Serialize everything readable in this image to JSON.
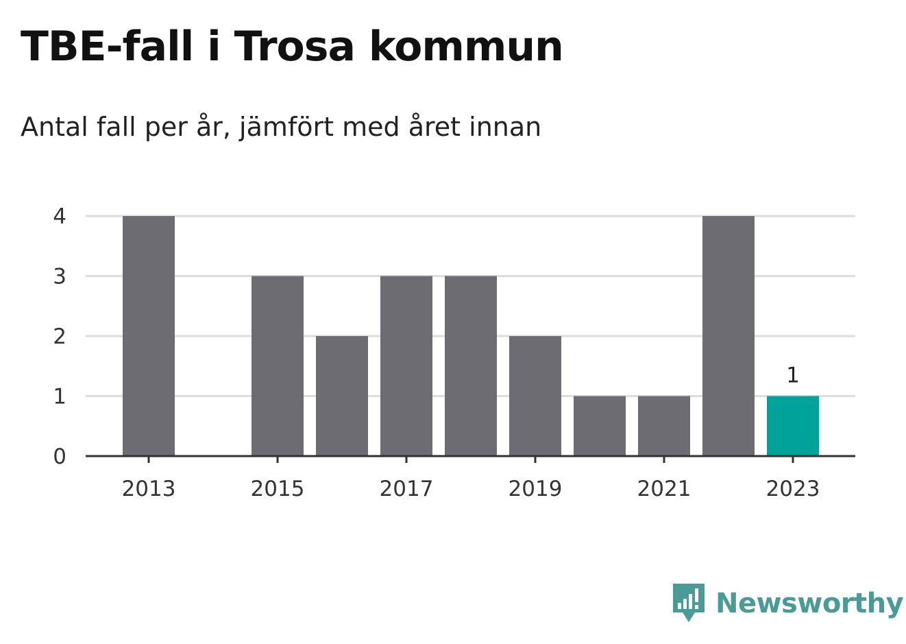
{
  "header": {
    "title": "TBE-fall i Trosa kommun",
    "subtitle": "Antal fall per år, jämfört med året innan"
  },
  "brand": {
    "name": "Newsworthy",
    "icon": "newsworthy-logo-icon",
    "color": "#4a9a96"
  },
  "chart_data": {
    "type": "bar",
    "title": "TBE-fall i Trosa kommun",
    "subtitle": "Antal fall per år, jämfört med året innan",
    "xlabel": "",
    "ylabel": "",
    "categories": [
      "2013",
      "2014",
      "2015",
      "2016",
      "2017",
      "2018",
      "2019",
      "2020",
      "2021",
      "2022",
      "2023"
    ],
    "x_tick_labels": [
      "2013",
      "2015",
      "2017",
      "2019",
      "2021",
      "2023"
    ],
    "values": [
      4,
      0,
      3,
      2,
      3,
      3,
      2,
      1,
      1,
      4,
      1
    ],
    "highlight_index": 10,
    "highlight_label": "1",
    "ylim": [
      0,
      4
    ],
    "y_ticks": [
      0,
      1,
      2,
      3,
      4
    ],
    "grid": true,
    "legend": "none",
    "colors": {
      "bar": "#6d6c72",
      "highlight": "#00a39a",
      "grid": "#dddddd",
      "axis": "#333333"
    }
  }
}
